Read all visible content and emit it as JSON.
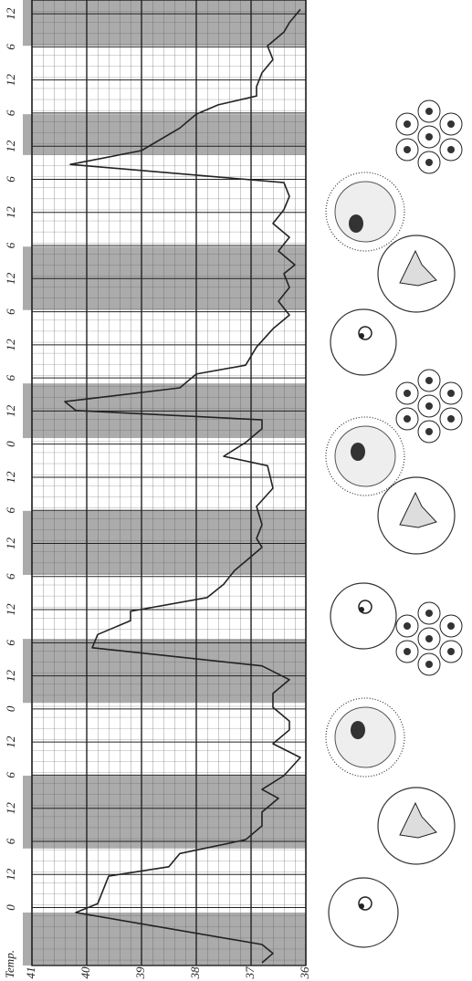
{
  "chart_data": {
    "type": "line",
    "ylabel": "Temp.",
    "color": "#222222",
    "band_color": "#8f8f8f",
    "grid": true,
    "xlim": [
      0,
      175
    ],
    "ylim": [
      36,
      41
    ],
    "yticks": [
      41,
      40,
      39,
      38,
      37,
      36
    ],
    "xticks": [
      {
        "value": 172.5,
        "label": "12"
      },
      {
        "value": 166.5,
        "label": "6"
      },
      {
        "value": 160.5,
        "label": "12"
      },
      {
        "value": 154.5,
        "label": "6"
      },
      {
        "value": 148.5,
        "label": "12"
      },
      {
        "value": 142.5,
        "label": "6"
      },
      {
        "value": 136.5,
        "label": "12"
      },
      {
        "value": 130.5,
        "label": "6"
      },
      {
        "value": 124.5,
        "label": "12"
      },
      {
        "value": 118.5,
        "label": "6"
      },
      {
        "value": 112.5,
        "label": "12"
      },
      {
        "value": 106.5,
        "label": "6"
      },
      {
        "value": 100.5,
        "label": "12"
      },
      {
        "value": 94.5,
        "label": "0"
      },
      {
        "value": 88.5,
        "label": "12"
      },
      {
        "value": 82.5,
        "label": "6"
      },
      {
        "value": 76.5,
        "label": "12"
      },
      {
        "value": 70.5,
        "label": "6"
      },
      {
        "value": 64.5,
        "label": "12"
      },
      {
        "value": 58.5,
        "label": "6"
      },
      {
        "value": 52.5,
        "label": "12"
      },
      {
        "value": 46.5,
        "label": "0"
      },
      {
        "value": 40.5,
        "label": "12"
      },
      {
        "value": 34.5,
        "label": "6"
      },
      {
        "value": 28.5,
        "label": "12"
      },
      {
        "value": 22.5,
        "label": "6"
      },
      {
        "value": 16.5,
        "label": "12"
      },
      {
        "value": 10.5,
        "label": "0"
      }
    ],
    "shaded_intervals": [
      [
        0,
        9.6
      ],
      [
        21.2,
        34.4
      ],
      [
        47.6,
        59.2
      ],
      [
        70.8,
        82.4
      ],
      [
        95.6,
        105.5
      ],
      [
        118.8,
        130.3
      ],
      [
        146.9,
        154.3
      ],
      [
        166.7,
        175
      ]
    ],
    "x": [
      0.5,
      2.2,
      3.8,
      9.6,
      11.2,
      13.7,
      16.2,
      17.9,
      20.3,
      22.8,
      25.3,
      27.8,
      30.3,
      31.9,
      34.4,
      37.7,
      40.2,
      42.7,
      44.3,
      46.8,
      49.3,
      51.8,
      54.3,
      57.6,
      60.0,
      62.5,
      64.2,
      66.7,
      69.1,
      71.6,
      74.1,
      75.8,
      77.4,
      79.9,
      83.2,
      86.5,
      90.6,
      92.3,
      94.8,
      97.3,
      98.9,
      100.6,
      102.2,
      104.7,
      107.2,
      108.8,
      112.1,
      115.4,
      117.9,
      120.4,
      122.9,
      125.4,
      127.0,
      129.5,
      132.0,
      134.5,
      137.0,
      139.4,
      141.9,
      145.2,
      147.7,
      151.8,
      154.3,
      156.0,
      157.6,
      159.3,
      161.8,
      164.2,
      166.7,
      169.2,
      170.9,
      173.3
    ],
    "values": [
      36.8,
      36.6,
      36.8,
      40.2,
      39.8,
      39.7,
      39.6,
      38.5,
      38.3,
      37.1,
      36.8,
      36.8,
      36.5,
      36.8,
      36.4,
      36.1,
      36.6,
      36.3,
      36.3,
      36.6,
      36.6,
      36.3,
      36.8,
      39.9,
      39.8,
      39.2,
      39.2,
      37.8,
      37.5,
      37.3,
      37.0,
      36.8,
      36.9,
      36.8,
      36.9,
      36.6,
      36.7,
      37.5,
      37.1,
      36.8,
      36.8,
      40.2,
      40.4,
      38.3,
      38.0,
      37.1,
      36.9,
      36.6,
      36.3,
      36.5,
      36.3,
      36.4,
      36.2,
      36.5,
      36.3,
      36.6,
      36.4,
      36.3,
      36.4,
      40.3,
      39.0,
      38.3,
      38.0,
      37.6,
      36.9,
      36.9,
      36.8,
      36.6,
      36.7,
      36.4,
      36.3,
      36.1
    ]
  }
}
